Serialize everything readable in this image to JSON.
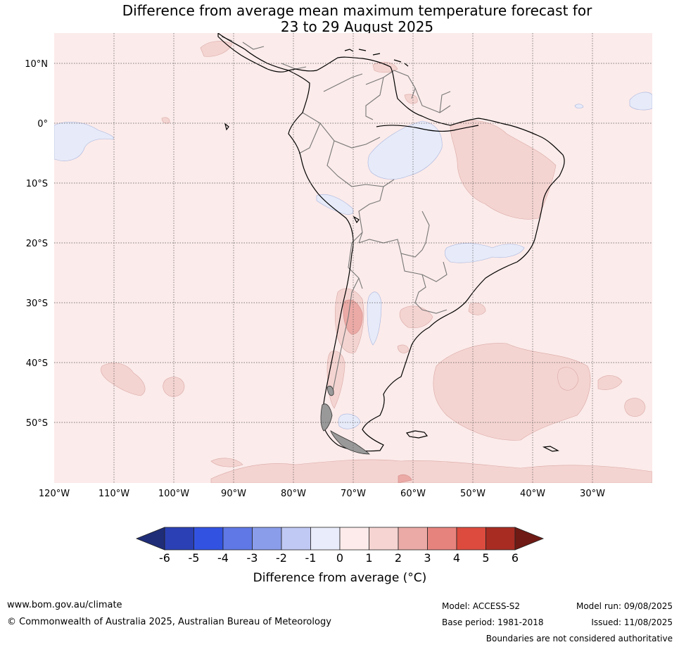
{
  "title": {
    "line1": "Difference from average mean maximum temperature forecast for",
    "line2": "23 to 29 August 2025"
  },
  "map": {
    "lat_labels": [
      "10°N",
      "0°",
      "10°S",
      "20°S",
      "30°S",
      "40°S",
      "50°S"
    ],
    "lon_labels": [
      "120°W",
      "110°W",
      "100°W",
      "90°W",
      "80°W",
      "70°W",
      "60°W",
      "50°W",
      "40°W",
      "30°W"
    ],
    "colors": {
      "ocean_base": "#fbebea",
      "warm_1_2": "#f4d4d1",
      "warm_2_3": "#ebaaa6",
      "cool_0_m1": "#e7ebf9",
      "coast": "#000000",
      "borders": "#777777",
      "grid": "#555555"
    }
  },
  "colorbar": {
    "ticks": [
      "-6",
      "-5",
      "-4",
      "-3",
      "-2",
      "-1",
      "0",
      "1",
      "2",
      "3",
      "4",
      "5",
      "6"
    ],
    "colors": [
      "#1f2d78",
      "#2a40b4",
      "#3253e2",
      "#5f78e5",
      "#8a9deb",
      "#c0c9f3",
      "#e9ecfa",
      "#fcebea",
      "#f5d4d1",
      "#ebaaa6",
      "#e7837d",
      "#dc4b3e",
      "#a82c22",
      "#6f1a14"
    ],
    "label": "Difference from average (°C)"
  },
  "footer": {
    "website": "www.bom.gov.au/climate",
    "copyright": "© Commonwealth of Australia 2025, Australian Bureau of Meteorology",
    "model": "Model: ACCESS-S2",
    "base_period": "Base period: 1981-2018",
    "model_run": "Model run: 09/08/2025",
    "issued": "Issued: 11/08/2025",
    "disclaimer": "Boundaries are not considered authoritative"
  }
}
